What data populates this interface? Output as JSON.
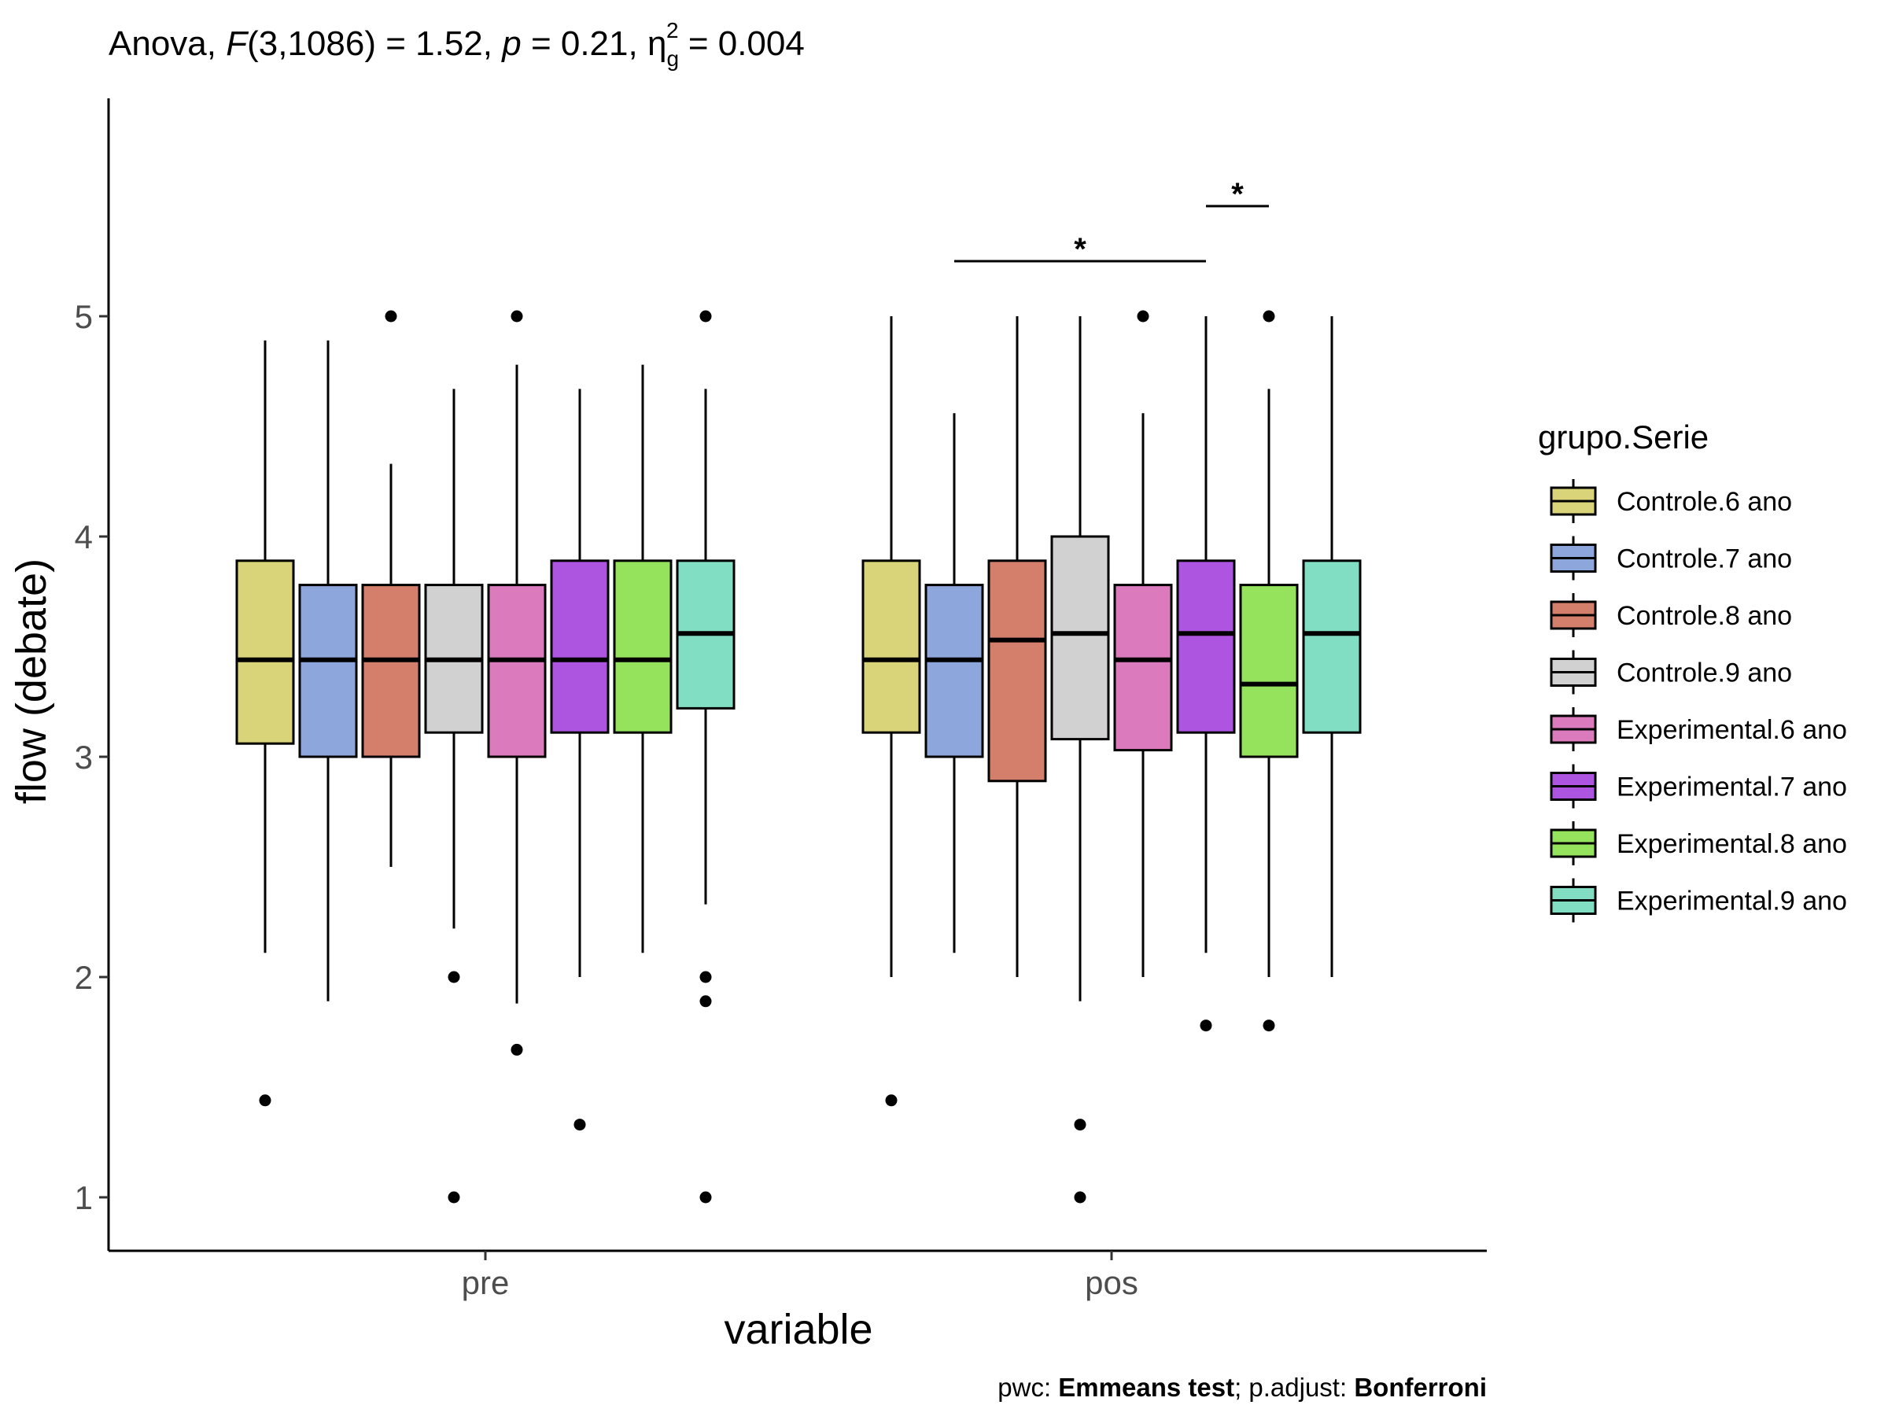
{
  "chart_data": {
    "type": "box",
    "title_parts": {
      "prefix": "Anova, ",
      "f_symbol": "F",
      "f_value": "(3,1086) = 1.52, ",
      "p_symbol": "p",
      "p_value": " = 0.21, ",
      "eta_symbol": "η",
      "eta_sub": "g",
      "eta_sup": "2",
      "eta_value": " = 0.004"
    },
    "xlabel": "variable",
    "ylabel": "flow (debate)",
    "categories": [
      "pre",
      "pos"
    ],
    "yticks": [
      1,
      2,
      3,
      4,
      5
    ],
    "ylim": [
      0.77,
      5.95
    ],
    "legend_title": "grupo.Serie",
    "legend_position": "right",
    "grid": false,
    "series": [
      {
        "name": "Controle.6 ano",
        "color": "#D9D479",
        "boxes": [
          {
            "min": 2.11,
            "q1": 3.06,
            "median": 3.44,
            "q3": 3.89,
            "max": 4.89,
            "outliers": [
              1.44
            ]
          },
          {
            "min": 2.0,
            "q1": 3.11,
            "median": 3.44,
            "q3": 3.89,
            "max": 5.0,
            "outliers": [
              1.44
            ]
          }
        ]
      },
      {
        "name": "Controle.7 ano",
        "color": "#8DA6DC",
        "boxes": [
          {
            "min": 1.89,
            "q1": 3.0,
            "median": 3.44,
            "q3": 3.78,
            "max": 4.89,
            "outliers": []
          },
          {
            "min": 2.11,
            "q1": 3.0,
            "median": 3.44,
            "q3": 3.78,
            "max": 4.56,
            "outliers": []
          }
        ]
      },
      {
        "name": "Controle.8 ano",
        "color": "#D47F6B",
        "boxes": [
          {
            "min": 2.5,
            "q1": 3.0,
            "median": 3.44,
            "q3": 3.78,
            "max": 4.33,
            "outliers": [
              5.0
            ]
          },
          {
            "min": 2.0,
            "q1": 2.89,
            "median": 3.53,
            "q3": 3.89,
            "max": 5.0,
            "outliers": []
          }
        ]
      },
      {
        "name": "Controle.9 ano",
        "color": "#D1D1D1",
        "boxes": [
          {
            "min": 2.22,
            "q1": 3.11,
            "median": 3.44,
            "q3": 3.78,
            "max": 4.67,
            "outliers": [
              2.0,
              1.0
            ]
          },
          {
            "min": 1.89,
            "q1": 3.08,
            "median": 3.56,
            "q3": 4.0,
            "max": 5.0,
            "outliers": [
              1.33,
              1.0
            ]
          }
        ]
      },
      {
        "name": "Experimental.6 ano",
        "color": "#DB7BBE",
        "boxes": [
          {
            "min": 1.88,
            "q1": 3.0,
            "median": 3.44,
            "q3": 3.78,
            "max": 4.78,
            "outliers": [
              5.0,
              1.67
            ]
          },
          {
            "min": 2.0,
            "q1": 3.03,
            "median": 3.44,
            "q3": 3.78,
            "max": 4.56,
            "outliers": [
              5.0
            ]
          }
        ]
      },
      {
        "name": "Experimental.7 ano",
        "color": "#AD55E0",
        "boxes": [
          {
            "min": 2.0,
            "q1": 3.11,
            "median": 3.44,
            "q3": 3.89,
            "max": 4.67,
            "outliers": [
              1.33
            ]
          },
          {
            "min": 2.11,
            "q1": 3.11,
            "median": 3.56,
            "q3": 3.89,
            "max": 5.0,
            "outliers": [
              1.78
            ]
          }
        ]
      },
      {
        "name": "Experimental.8 ano",
        "color": "#95E35D",
        "boxes": [
          {
            "min": 2.11,
            "q1": 3.11,
            "median": 3.44,
            "q3": 3.89,
            "max": 4.78,
            "outliers": []
          },
          {
            "min": 2.0,
            "q1": 3.0,
            "median": 3.33,
            "q3": 3.78,
            "max": 4.67,
            "outliers": [
              5.0,
              1.78
            ]
          }
        ]
      },
      {
        "name": "Experimental.9 ano",
        "color": "#82DEC3",
        "boxes": [
          {
            "min": 2.33,
            "q1": 3.22,
            "median": 3.56,
            "q3": 3.89,
            "max": 4.67,
            "outliers": [
              5.0,
              2.0,
              1.89,
              1.0
            ]
          },
          {
            "min": 2.0,
            "q1": 3.11,
            "median": 3.56,
            "q3": 3.89,
            "max": 5.0,
            "outliers": []
          }
        ]
      }
    ],
    "significance": [
      {
        "category": "pos",
        "from_series": 1,
        "to_series": 5,
        "y": 5.25,
        "label": "*"
      },
      {
        "category": "pos",
        "from_series": 5,
        "to_series": 6,
        "y": 5.5,
        "label": "*"
      }
    ],
    "caption_parts": {
      "pwc_label": "pwc: ",
      "pwc_method": "Emmeans test",
      "sep": "; p.adjust: ",
      "adjust_method": "Bonferroni"
    }
  }
}
